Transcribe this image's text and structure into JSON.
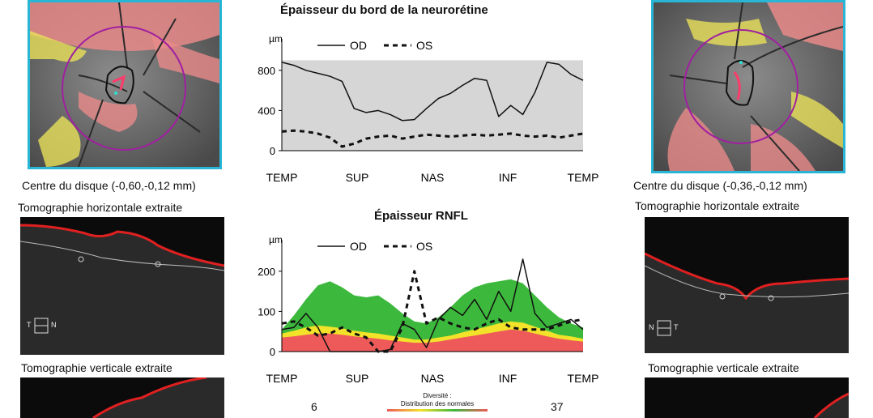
{
  "left_panel": {
    "center": "Centre du disque (-0,60,-0,12 mm)",
    "horizontal": "Tomographie horizontale extraite",
    "vertical": "Tomographie verticale extraite",
    "orient_left": "T",
    "orient_right": "N"
  },
  "right_panel": {
    "center": "Centre du disque (-0,36,-0,12 mm)",
    "horizontal": "Tomographie horizontale extraite",
    "vertical": "Tomographie verticale extraite",
    "orient_left": "N",
    "orient_right": "T"
  },
  "diversity": {
    "left_value": "6",
    "right_value": "37",
    "label_line1": "Diversité :",
    "label_line2": "Distribution des normales"
  },
  "colors": {
    "od": "#111111",
    "band_green": "#3cb83c",
    "band_yellow": "#f2e22a",
    "band_red": "#ee5a5a",
    "background_band": "#d6d6d6",
    "frame": "#29b6d6"
  },
  "chart_data": [
    {
      "type": "line",
      "title": "Épaisseur du bord de la neurorétine",
      "ylabel": "µm",
      "legend": [
        "OD",
        "OS"
      ],
      "yticks": [
        0,
        400,
        800
      ],
      "ylim": [
        0,
        1000
      ],
      "categories": [
        "TEMP",
        "SUP",
        "NAS",
        "INF",
        "TEMP"
      ],
      "x": [
        0,
        4,
        8,
        12,
        16,
        20,
        24,
        28,
        32,
        36,
        40,
        44,
        48,
        52,
        56,
        60,
        64,
        68,
        72,
        76,
        80,
        84,
        88,
        92,
        96,
        100
      ],
      "normal_range": [
        0,
        900
      ],
      "series": [
        {
          "name": "OD",
          "style": "solid",
          "values": [
            880,
            850,
            800,
            770,
            740,
            690,
            420,
            380,
            400,
            360,
            300,
            310,
            420,
            520,
            570,
            650,
            720,
            700,
            340,
            450,
            360,
            580,
            880,
            860,
            760,
            700
          ]
        },
        {
          "name": "OS",
          "style": "dashed",
          "values": [
            190,
            200,
            190,
            170,
            130,
            40,
            70,
            120,
            140,
            150,
            120,
            140,
            160,
            150,
            140,
            150,
            160,
            150,
            160,
            170,
            150,
            140,
            150,
            130,
            150,
            170
          ]
        }
      ]
    },
    {
      "type": "line",
      "title": "Épaisseur RNFL",
      "ylabel": "µm",
      "legend": [
        "OD",
        "OS"
      ],
      "yticks": [
        0,
        100,
        200
      ],
      "ylim": [
        0,
        250
      ],
      "categories": [
        "TEMP",
        "SUP",
        "NAS",
        "INF",
        "TEMP"
      ],
      "x": [
        0,
        4,
        8,
        12,
        16,
        20,
        24,
        28,
        32,
        36,
        40,
        44,
        48,
        52,
        56,
        60,
        64,
        68,
        72,
        76,
        80,
        84,
        88,
        92,
        96,
        100
      ],
      "normal_bands": {
        "red_top": [
          35,
          38,
          42,
          45,
          45,
          42,
          38,
          35,
          32,
          28,
          25,
          22,
          22,
          25,
          30,
          35,
          40,
          45,
          50,
          55,
          52,
          45,
          38,
          32,
          28,
          25
        ],
        "yellow_top": [
          45,
          52,
          60,
          65,
          62,
          58,
          52,
          48,
          45,
          40,
          35,
          30,
          30,
          35,
          40,
          48,
          55,
          62,
          70,
          75,
          72,
          62,
          52,
          42,
          38,
          32
        ],
        "green_top": [
          55,
          90,
          130,
          165,
          175,
          160,
          140,
          135,
          140,
          120,
          95,
          75,
          70,
          85,
          110,
          140,
          160,
          170,
          175,
          180,
          170,
          140,
          110,
          85,
          70,
          60
        ]
      },
      "series": [
        {
          "name": "OD",
          "style": "solid",
          "values": [
            55,
            60,
            95,
            60,
            0,
            0,
            0,
            0,
            0,
            5,
            70,
            55,
            10,
            80,
            110,
            90,
            130,
            80,
            150,
            100,
            230,
            95,
            60,
            70,
            80,
            55
          ]
        },
        {
          "name": "OS",
          "style": "dashed",
          "values": [
            70,
            75,
            60,
            40,
            45,
            60,
            45,
            35,
            0,
            0,
            60,
            200,
            70,
            85,
            70,
            60,
            55,
            70,
            80,
            60,
            55,
            55,
            55,
            65,
            75,
            80
          ]
        }
      ]
    }
  ]
}
